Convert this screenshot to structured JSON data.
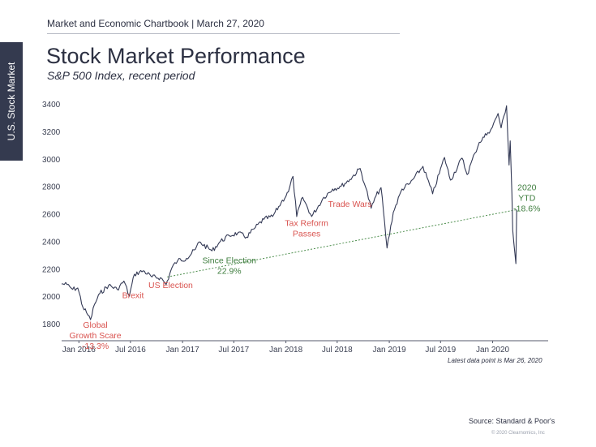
{
  "header": {
    "text": "Market and Economic Chartbook | March 27, 2020"
  },
  "side_tab": {
    "label": "U.S. Stock Market"
  },
  "title": "Stock Market Performance",
  "subtitle": "S&P 500 Index, recent period",
  "latest_note": "Latest data point is Mar 26, 2020",
  "source": "Source: Standard & Poor's",
  "copyright": "© 2020 Clearnomics, Inc",
  "colors": {
    "line": "#343a56",
    "red_annotation": "#d9534f",
    "green_annotation": "#3e7d3e",
    "trend_dotted": "#4f8f4f",
    "axis": "#555a6b"
  },
  "chart_data": {
    "type": "line",
    "title": "Stock Market Performance",
    "subtitle": "S&P 500 Index, recent period",
    "xlabel": "",
    "ylabel": "",
    "ylim": [
      1700,
      3500
    ],
    "y_ticks": [
      "1800",
      "2000",
      "2200",
      "2400",
      "2600",
      "2800",
      "3000",
      "3200",
      "3400"
    ],
    "x_tick_labels": [
      "Jan 2016",
      "Jul 2016",
      "Jan 2017",
      "Jul 2017",
      "Jan 2018",
      "Jul 2018",
      "Jan 2019",
      "Jul 2019",
      "Jan 2020"
    ],
    "x_tick_dates": [
      "2016-01-01",
      "2016-07-01",
      "2017-01-01",
      "2017-07-01",
      "2018-01-01",
      "2018-07-01",
      "2019-01-01",
      "2019-07-01",
      "2020-01-01"
    ],
    "xlim": [
      "2015-11-01",
      "2020-07-15"
    ],
    "grid": false,
    "series": [
      {
        "points": [
          [
            "2015-11-01",
            2090
          ],
          [
            "2015-11-20",
            2085
          ],
          [
            "2015-12-10",
            2050
          ],
          [
            "2015-12-28",
            2060
          ],
          [
            "2016-01-15",
            1920
          ],
          [
            "2016-01-28",
            1880
          ],
          [
            "2016-02-11",
            1829
          ],
          [
            "2016-02-25",
            1940
          ],
          [
            "2016-03-15",
            2020
          ],
          [
            "2016-04-15",
            2080
          ],
          [
            "2016-05-15",
            2050
          ],
          [
            "2016-06-08",
            2110
          ],
          [
            "2016-06-27",
            2000
          ],
          [
            "2016-07-15",
            2160
          ],
          [
            "2016-08-15",
            2185
          ],
          [
            "2016-09-15",
            2140
          ],
          [
            "2016-10-15",
            2135
          ],
          [
            "2016-11-04",
            2085
          ],
          [
            "2016-11-25",
            2210
          ],
          [
            "2016-12-15",
            2260
          ],
          [
            "2017-01-15",
            2275
          ],
          [
            "2017-02-15",
            2340
          ],
          [
            "2017-03-01",
            2395
          ],
          [
            "2017-04-15",
            2330
          ],
          [
            "2017-05-15",
            2400
          ],
          [
            "2017-06-15",
            2440
          ],
          [
            "2017-07-15",
            2460
          ],
          [
            "2017-08-15",
            2430
          ],
          [
            "2017-09-15",
            2500
          ],
          [
            "2017-10-15",
            2560
          ],
          [
            "2017-11-15",
            2580
          ],
          [
            "2017-12-15",
            2680
          ],
          [
            "2018-01-10",
            2760
          ],
          [
            "2018-01-26",
            2872
          ],
          [
            "2018-02-08",
            2580
          ],
          [
            "2018-03-01",
            2720
          ],
          [
            "2018-04-02",
            2580
          ],
          [
            "2018-05-15",
            2720
          ],
          [
            "2018-06-15",
            2780
          ],
          [
            "2018-07-15",
            2800
          ],
          [
            "2018-08-15",
            2850
          ],
          [
            "2018-09-20",
            2930
          ],
          [
            "2018-10-10",
            2790
          ],
          [
            "2018-10-29",
            2640
          ],
          [
            "2018-11-15",
            2730
          ],
          [
            "2018-12-03",
            2790
          ],
          [
            "2018-12-24",
            2351
          ],
          [
            "2019-01-15",
            2610
          ],
          [
            "2019-02-15",
            2780
          ],
          [
            "2019-03-15",
            2820
          ],
          [
            "2019-04-30",
            2945
          ],
          [
            "2019-06-03",
            2745
          ],
          [
            "2019-07-15",
            3010
          ],
          [
            "2019-08-05",
            2845
          ],
          [
            "2019-09-15",
            3005
          ],
          [
            "2019-10-03",
            2885
          ],
          [
            "2019-10-30",
            3040
          ],
          [
            "2019-11-15",
            3120
          ],
          [
            "2019-12-15",
            3190
          ],
          [
            "2019-12-31",
            3230
          ],
          [
            "2020-01-20",
            3330
          ],
          [
            "2020-01-31",
            3225
          ],
          [
            "2020-02-19",
            3386
          ],
          [
            "2020-02-28",
            2954
          ],
          [
            "2020-03-03",
            3130
          ],
          [
            "2020-03-09",
            2746
          ],
          [
            "2020-03-12",
            2480
          ],
          [
            "2020-03-16",
            2386
          ],
          [
            "2020-03-23",
            2237
          ],
          [
            "2020-03-26",
            2630
          ]
        ]
      }
    ],
    "trend_line": {
      "from": [
        "2016-11-08",
        2140
      ],
      "to": [
        "2020-03-26",
        2630
      ]
    },
    "annotations": [
      {
        "lines": [
          "Global",
          "Growth Scare",
          "-13.3%"
        ],
        "color": "red",
        "at": [
          "2016-02-28",
          1770
        ]
      },
      {
        "lines": [
          "Brexit"
        ],
        "color": "red",
        "at": [
          "2016-07-10",
          1985
        ]
      },
      {
        "lines": [
          "US Election"
        ],
        "color": "red",
        "at": [
          "2016-11-20",
          2060
        ]
      },
      {
        "lines": [
          "Since Election",
          "22.9%"
        ],
        "color": "green",
        "at": [
          "2017-06-15",
          2240
        ]
      },
      {
        "lines": [
          "Tax Reform",
          "Passes"
        ],
        "color": "red",
        "at": [
          "2018-03-15",
          2510
        ]
      },
      {
        "lines": [
          "Trade Wars"
        ],
        "color": "red",
        "at": [
          "2018-08-15",
          2650
        ]
      },
      {
        "lines": [
          "2020",
          "YTD",
          "-18.6%"
        ],
        "color": "green",
        "at": [
          "2020-05-01",
          2770
        ]
      }
    ]
  }
}
